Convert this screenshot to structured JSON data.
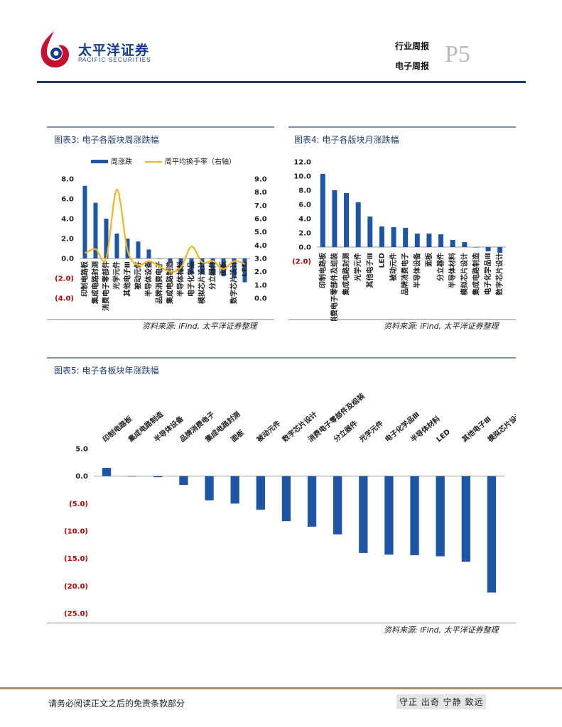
{
  "header": {
    "brand_cn": "太平洋证券",
    "brand_en": "PACIFIC SECURITIES",
    "report_type": "行业周报",
    "report_sub": "电子周报",
    "page": "P5"
  },
  "colors": {
    "bar": "#1f55a5",
    "line": "#f2b51d",
    "navy": "#1e3b72",
    "negative_tick": "#c00000"
  },
  "panels": [
    {
      "title": "图表3: 电子各版块周涨跌幅",
      "source": "资料来源: iFind, 太平洋证券整理"
    },
    {
      "title": "图表4: 电子各版块月涨跌幅",
      "source": "资料来源: iFind, 太平洋证券整理"
    },
    {
      "title": "图表5: 电子各板块年涨跌幅",
      "source": "资料来源: iFind, 太平洋证券整理"
    }
  ],
  "chart_data": [
    {
      "type": "bar",
      "title": "电子各版块周涨跌幅",
      "categories": [
        "印制电路板",
        "集成电路封测",
        "消费电子零部件",
        "光学元件",
        "其他电子Ⅲ",
        "被动元件",
        "半导体设备",
        "品牌消费电子",
        "集成电路制造",
        "半导体材料",
        "电子化学品",
        "模拟芯片设计",
        "分立器件",
        "面板",
        "数字芯片设计",
        "LED"
      ],
      "series": [
        {
          "name": "周涨跌",
          "axis": "left",
          "values": [
            7.3,
            5.6,
            4.0,
            2.5,
            2.0,
            1.7,
            0.9,
            0.0,
            -0.4,
            -1.4,
            -1.6,
            -1.6,
            -1.7,
            -1.8,
            -2.0,
            -2.4
          ]
        },
        {
          "name": "周平均换手率（右轴）",
          "axis": "right",
          "type": "line",
          "values": [
            3.4,
            3.7,
            3.0,
            8.2,
            3.6,
            2.5,
            2.8,
            2.4,
            2.0,
            2.3,
            3.9,
            2.7,
            2.8,
            2.2,
            2.8,
            2.6
          ]
        }
      ],
      "y_ticks": [
        "8.0",
        "6.0",
        "4.0",
        "2.0",
        "0.0",
        "(2.0)",
        "(4.0)"
      ],
      "y2_ticks": [
        "9.0",
        "8.0",
        "7.0",
        "6.0",
        "5.0",
        "4.0",
        "3.0",
        "2.0",
        "1.0",
        "0.0"
      ],
      "ylim": [
        -4,
        8
      ],
      "y2lim": [
        0,
        9
      ]
    },
    {
      "type": "bar",
      "title": "电子各版块月涨跌幅",
      "categories": [
        "印制电路板",
        "消费电子零部件及组装",
        "集成电路封测",
        "光学元件",
        "其他电子Ⅲ",
        "LED",
        "被动元件",
        "品牌消费电子",
        "半导体设备",
        "面板",
        "分立器件",
        "半导体材料",
        "模拟芯片设计",
        "集成电路制造",
        "电子化学品Ⅲ",
        "数字芯片设计"
      ],
      "values": [
        10.3,
        8.0,
        7.6,
        6.3,
        4.3,
        2.9,
        2.8,
        2.7,
        1.9,
        1.9,
        1.8,
        1.0,
        0.7,
        0.0,
        -0.6,
        -0.8
      ],
      "y_ticks": [
        "12.0",
        "10.0",
        "8.0",
        "6.0",
        "4.0",
        "2.0",
        "0.0",
        "(2.0)"
      ],
      "ylim": [
        -2,
        12
      ]
    },
    {
      "type": "bar",
      "title": "电子各板块年涨跌幅",
      "categories": [
        "印制电路板",
        "集成电路制造",
        "半导体设备",
        "品牌消费电子",
        "集成电路封测",
        "面板",
        "被动元件",
        "数字芯片设计",
        "消费电子零部件及组装",
        "分立器件",
        "光学元件",
        "电子化学品Ⅲ",
        "半导体材料",
        "LED",
        "其他电子Ⅲ",
        "模拟芯片设计"
      ],
      "values": [
        1.5,
        0.0,
        -0.2,
        -1.6,
        -4.4,
        -5.0,
        -6.1,
        -8.2,
        -9.2,
        -10.6,
        -14.0,
        -14.3,
        -14.4,
        -14.6,
        -15.6,
        -21.2
      ],
      "y_ticks": [
        "5.0",
        "0.0",
        "(5.0)",
        "(10.0)",
        "(15.0)",
        "(20.0)",
        "(25.0)"
      ],
      "ylim": [
        -25,
        5
      ]
    }
  ],
  "footer": {
    "disclaimer": "请务必阅读正文之后的免责条款部分",
    "motto": "守正 出奇 宁静 致远"
  }
}
